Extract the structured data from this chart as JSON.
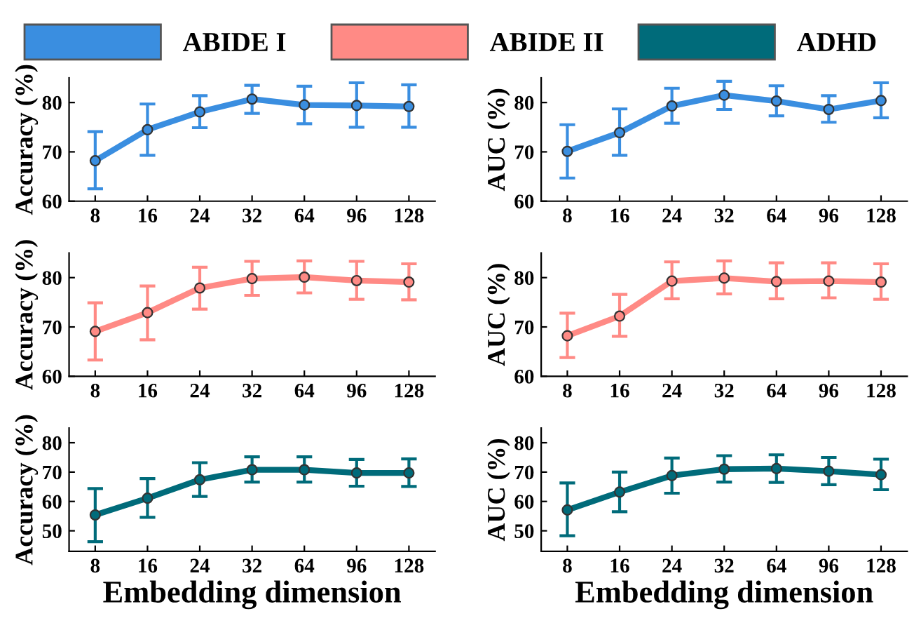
{
  "chart_data": [
    {
      "type": "line",
      "ylabel": "Accuracy (%)",
      "categories": [
        "8",
        "16",
        "24",
        "32",
        "64",
        "96",
        "128"
      ],
      "ylim": [
        60,
        85
      ],
      "yticks": [
        60,
        70,
        80
      ],
      "marker": "circle",
      "legend": "top",
      "series": [
        {
          "name": "ABIDE I",
          "color": "#3a8ee0",
          "values": [
            68.2,
            74.5,
            78.1,
            80.7,
            79.5,
            79.4,
            79.2
          ],
          "errors": [
            [
              62.5,
              74.1
            ],
            [
              69.3,
              79.7
            ],
            [
              74.9,
              81.4
            ],
            [
              77.8,
              83.5
            ],
            [
              75.7,
              83.3
            ],
            [
              75.0,
              84.0
            ],
            [
              75.0,
              83.6
            ]
          ]
        }
      ]
    },
    {
      "type": "line",
      "ylabel": "AUC (%)",
      "categories": [
        "8",
        "16",
        "24",
        "32",
        "64",
        "96",
        "128"
      ],
      "ylim": [
        60,
        85
      ],
      "yticks": [
        60,
        70,
        80
      ],
      "marker": "circle",
      "series": [
        {
          "color": "#3a8ee0",
          "values": [
            70.1,
            73.9,
            79.3,
            81.5,
            80.3,
            78.6,
            80.4
          ],
          "errors": [
            [
              64.7,
              75.5
            ],
            [
              69.3,
              78.7
            ],
            [
              75.8,
              82.9
            ],
            [
              78.6,
              84.3
            ],
            [
              77.3,
              83.4
            ],
            [
              76.0,
              81.4
            ],
            [
              76.9,
              84.0
            ]
          ]
        }
      ]
    },
    {
      "type": "line",
      "ylabel": "Accuracy (%)",
      "categories": [
        "8",
        "16",
        "24",
        "32",
        "64",
        "96",
        "128"
      ],
      "ylim": [
        60,
        85
      ],
      "yticks": [
        60,
        70,
        80
      ],
      "marker": "circle",
      "legend": "top",
      "series": [
        {
          "name": "ABIDE II",
          "color": "#ff8a85",
          "values": [
            69.1,
            72.9,
            77.9,
            79.8,
            80.1,
            79.4,
            79.1
          ],
          "errors": [
            [
              63.3,
              74.9
            ],
            [
              67.4,
              78.3
            ],
            [
              73.6,
              82.1
            ],
            [
              76.4,
              83.3
            ],
            [
              76.9,
              83.4
            ],
            [
              75.6,
              83.3
            ],
            [
              75.5,
              82.8
            ]
          ]
        }
      ]
    },
    {
      "type": "line",
      "ylabel": "AUC (%)",
      "categories": [
        "8",
        "16",
        "24",
        "32",
        "64",
        "96",
        "128"
      ],
      "ylim": [
        60,
        85
      ],
      "yticks": [
        60,
        70,
        80
      ],
      "marker": "circle",
      "series": [
        {
          "color": "#ff8a85",
          "values": [
            68.2,
            72.2,
            79.3,
            79.9,
            79.2,
            79.3,
            79.1
          ],
          "errors": [
            [
              63.8,
              72.8
            ],
            [
              68.1,
              76.6
            ],
            [
              75.7,
              83.2
            ],
            [
              76.7,
              83.4
            ],
            [
              75.7,
              83.0
            ],
            [
              75.9,
              83.0
            ],
            [
              75.6,
              82.8
            ]
          ]
        }
      ]
    },
    {
      "type": "line",
      "xlabel": "Embedding dimension",
      "ylabel": "Accuracy (%)",
      "categories": [
        "8",
        "16",
        "24",
        "32",
        "64",
        "96",
        "128"
      ],
      "ylim": [
        43,
        85
      ],
      "yticks": [
        50,
        60,
        70,
        80
      ],
      "marker": "circle",
      "legend": "top",
      "series": [
        {
          "name": "ADHD",
          "color": "#006b7a",
          "values": [
            55.4,
            61.1,
            67.4,
            70.8,
            70.8,
            69.7,
            69.7
          ],
          "errors": [
            [
              46.3,
              64.4
            ],
            [
              54.6,
              67.8
            ],
            [
              61.7,
              73.2
            ],
            [
              66.6,
              75.2
            ],
            [
              66.6,
              75.2
            ],
            [
              65.2,
              74.3
            ],
            [
              65.1,
              74.5
            ]
          ]
        }
      ]
    },
    {
      "type": "line",
      "xlabel": "Embedding dimension",
      "ylabel": "AUC (%)",
      "categories": [
        "8",
        "16",
        "24",
        "32",
        "64",
        "96",
        "128"
      ],
      "ylim": [
        43,
        85
      ],
      "yticks": [
        50,
        60,
        70,
        80
      ],
      "marker": "circle",
      "series": [
        {
          "color": "#006b7a",
          "values": [
            57.1,
            63.2,
            68.8,
            71.0,
            71.2,
            70.3,
            69.1
          ],
          "errors": [
            [
              48.3,
              66.3
            ],
            [
              56.5,
              70.0
            ],
            [
              62.8,
              74.8
            ],
            [
              66.6,
              75.6
            ],
            [
              66.5,
              75.9
            ],
            [
              65.7,
              75.0
            ],
            [
              64.0,
              74.4
            ]
          ]
        }
      ]
    }
  ]
}
